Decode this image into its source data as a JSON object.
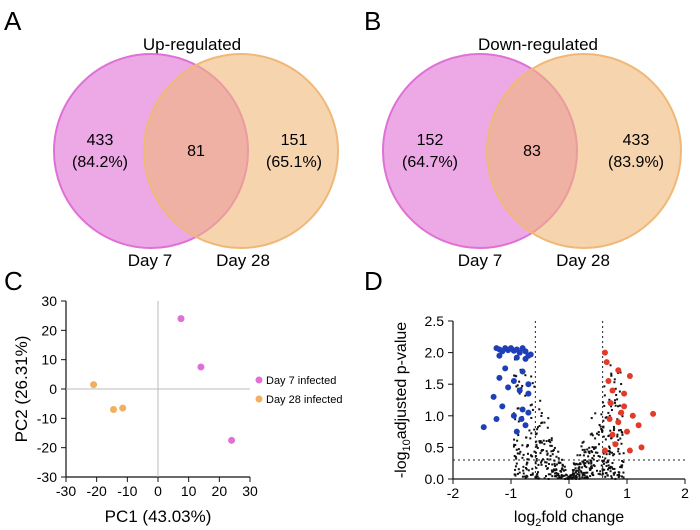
{
  "colors": {
    "pink": "#e070d6",
    "orange": "#f0b878",
    "overlap": "#e27fa6",
    "blue": "#1f3fb8",
    "red": "#e33a2a",
    "black": "#111111"
  },
  "panels": {
    "a": {
      "letter": "A",
      "title": "Up-regulated",
      "left_label": "Day 7",
      "right_label": "Day 28"
    },
    "b": {
      "letter": "B",
      "title": "Down-regulated",
      "left_label": "Day 7",
      "right_label": "Day 28"
    },
    "c": {
      "letter": "C"
    },
    "d": {
      "letter": "D"
    }
  },
  "chart_data": [
    {
      "type": "venn",
      "title": "Up-regulated",
      "sets": [
        "Day 7",
        "Day 28"
      ],
      "only_left": {
        "count": "433",
        "percent": "(84.2%)"
      },
      "overlap": {
        "count": "81"
      },
      "only_right": {
        "count": "151",
        "percent": "(65.1%)"
      }
    },
    {
      "type": "venn",
      "title": "Down-regulated",
      "sets": [
        "Day 7",
        "Day 28"
      ],
      "only_left": {
        "count": "152",
        "percent": "(64.7%)"
      },
      "overlap": {
        "count": "83"
      },
      "only_right": {
        "count": "433",
        "percent": "(83.9%)"
      }
    },
    {
      "type": "scatter",
      "xlabel": "PC1 (43.03%)",
      "ylabel": "PC2 (26.31%)",
      "xlim": [
        -30,
        30
      ],
      "ylim": [
        -30,
        30
      ],
      "xticks": [
        -30,
        -20,
        -10,
        0,
        10,
        20,
        30
      ],
      "yticks": [
        -30,
        -20,
        -10,
        0,
        10,
        20,
        30
      ],
      "series": [
        {
          "name": "Day 7 infected",
          "color": "#e070d6",
          "points": [
            [
              7.5,
              24
            ],
            [
              14,
              7.5
            ],
            [
              24,
              -17.5
            ]
          ]
        },
        {
          "name": "Day 28 infected",
          "color": "#f0b060",
          "points": [
            [
              -21,
              1.5
            ],
            [
              -14.5,
              -7
            ],
            [
              -11.5,
              -6.5
            ]
          ]
        }
      ]
    },
    {
      "type": "scatter",
      "xlabel": "log2fold change",
      "ylabel": "-log10adjusted p-value",
      "xlim": [
        -2,
        2
      ],
      "ylim": [
        0,
        2.5
      ],
      "xticks": [
        -2,
        -1,
        0,
        1,
        2
      ],
      "yticks": [
        0.0,
        0.5,
        1.0,
        1.5,
        2.0,
        2.5
      ],
      "thresholds": {
        "x": [
          -0.58,
          0.58
        ],
        "y": 0.3
      },
      "down_points": [
        [
          -1.47,
          0.82
        ],
        [
          -1.25,
          2.07
        ],
        [
          -1.2,
          2.05
        ],
        [
          -1.15,
          2.02
        ],
        [
          -1.1,
          2.07
        ],
        [
          -1.05,
          2.04
        ],
        [
          -1.0,
          2.07
        ],
        [
          -0.95,
          2.03
        ],
        [
          -0.9,
          2.05
        ],
        [
          -0.85,
          2.0
        ],
        [
          -0.8,
          2.07
        ],
        [
          -0.75,
          2.02
        ],
        [
          -0.7,
          1.95
        ],
        [
          -0.66,
          1.97
        ],
        [
          -1.2,
          1.95
        ],
        [
          -0.9,
          1.92
        ],
        [
          -0.75,
          1.9
        ],
        [
          -1.1,
          1.75
        ],
        [
          -0.8,
          1.7
        ],
        [
          -1.2,
          1.6
        ],
        [
          -0.95,
          1.55
        ],
        [
          -0.7,
          1.5
        ],
        [
          -1.05,
          1.45
        ],
        [
          -0.85,
          1.4
        ],
        [
          -0.7,
          1.35
        ],
        [
          -1.3,
          1.3
        ],
        [
          -1.15,
          1.15
        ],
        [
          -0.8,
          1.1
        ],
        [
          -0.95,
          1.0
        ],
        [
          -0.7,
          1.05
        ],
        [
          -1.25,
          0.95
        ],
        [
          -0.75,
          0.85
        ],
        [
          -0.9,
          0.75
        ],
        [
          -0.82,
          0.95
        ]
      ],
      "up_points": [
        [
          1.45,
          1.03
        ],
        [
          1.05,
          1.63
        ],
        [
          0.85,
          1.72
        ],
        [
          0.68,
          1.55
        ],
        [
          0.75,
          1.4
        ],
        [
          0.95,
          1.35
        ],
        [
          1.1,
          1.0
        ],
        [
          0.9,
          1.05
        ],
        [
          1.2,
          0.85
        ],
        [
          1.0,
          0.75
        ],
        [
          0.75,
          0.7
        ],
        [
          0.7,
          0.95
        ],
        [
          0.8,
          0.55
        ],
        [
          1.05,
          0.45
        ],
        [
          1.25,
          0.5
        ],
        [
          0.62,
          0.45
        ],
        [
          0.85,
          0.9
        ],
        [
          0.65,
          1.85
        ],
        [
          0.62,
          2.0
        ],
        [
          0.95,
          1.15
        ],
        [
          0.72,
          1.2
        ]
      ]
    }
  ],
  "legend": {
    "day7": "Day 7 infected",
    "day28": "Day 28 infected"
  },
  "axes_text": {
    "pc1": "PC1 (43.03%)",
    "pc2": "PC2 (26.31%)",
    "xlabel_log": "log",
    "xlabel_sub": "2",
    "xlabel_rest": "fold change",
    "ylabel_pre": "-log",
    "ylabel_sub": "10",
    "ylabel_rest": "adjusted p-value"
  }
}
